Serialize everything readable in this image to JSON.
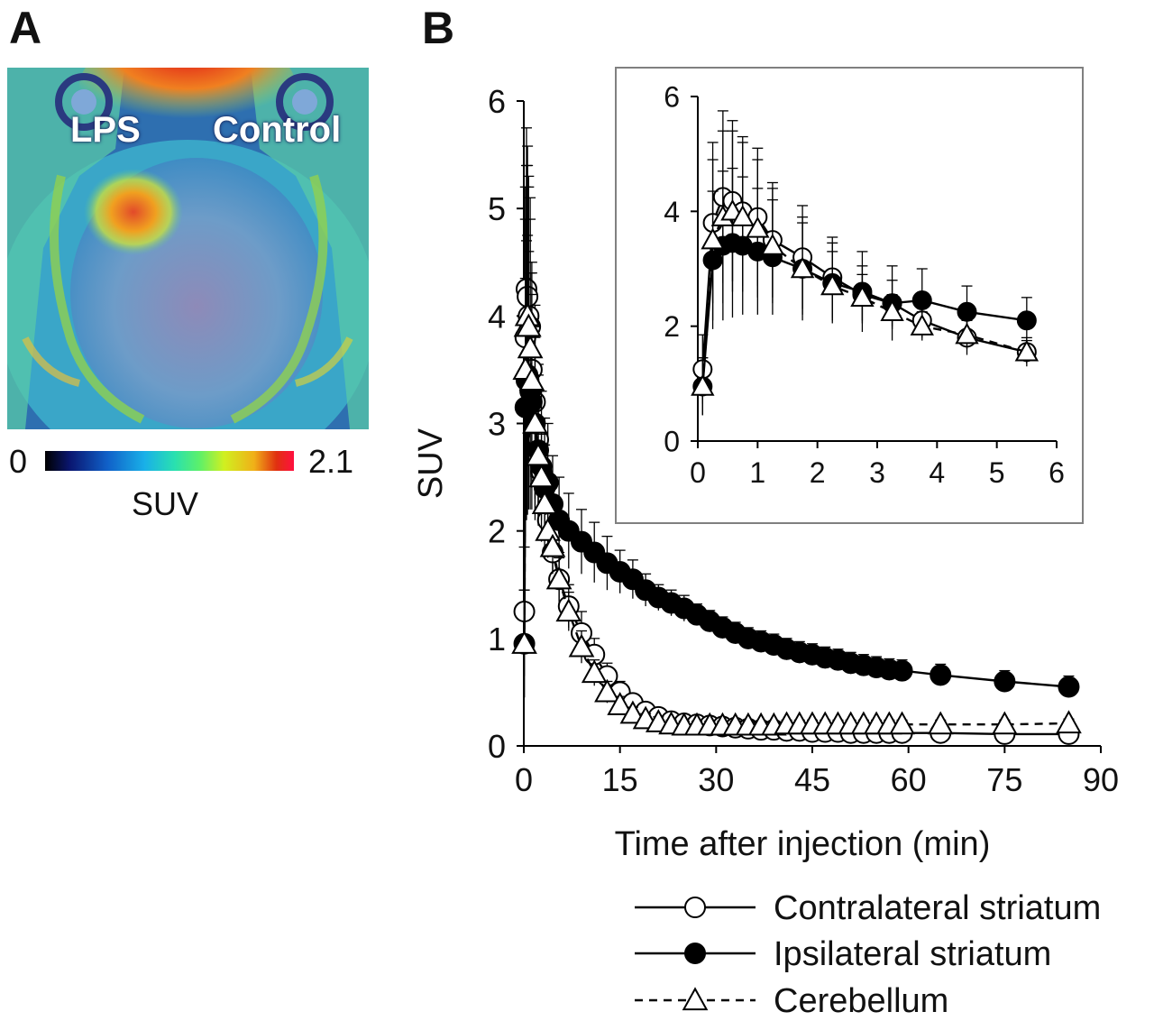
{
  "panel_a": {
    "letter": "A",
    "labels": {
      "lps": "LPS",
      "control": "Control"
    },
    "colorbar": {
      "min": "0",
      "max": "2.1",
      "unit": "SUV"
    }
  },
  "panel_b": {
    "letter": "B"
  },
  "chart_data": [
    {
      "type": "line",
      "xlabel": "Time after injection (min)",
      "ylabel": "SUV",
      "xlim": [
        0,
        90
      ],
      "ylim": [
        0,
        6
      ],
      "xticks": [
        "0",
        "15",
        "30",
        "45",
        "60",
        "75",
        "90"
      ],
      "yticks": [
        "0",
        "1",
        "2",
        "3",
        "4",
        "5",
        "6"
      ],
      "legend_position": "below plot, right",
      "series": [
        {
          "name": "Contralateral striatum",
          "marker": "open-circle",
          "line": "solid",
          "x": [
            0.08,
            0.25,
            0.42,
            0.58,
            0.75,
            1.0,
            1.25,
            1.75,
            2.25,
            2.75,
            3.25,
            3.75,
            4.5,
            5.5,
            7,
            9,
            11,
            13,
            15,
            17,
            19,
            21,
            23,
            25,
            27,
            29,
            31,
            33,
            35,
            37,
            39,
            41,
            43,
            45,
            47,
            49,
            51,
            53,
            55,
            57,
            59,
            65,
            75,
            85
          ],
          "y": [
            1.25,
            3.8,
            4.25,
            4.18,
            4.0,
            3.9,
            3.5,
            3.2,
            2.85,
            2.55,
            2.4,
            2.1,
            1.8,
            1.55,
            1.3,
            1.05,
            0.85,
            0.65,
            0.5,
            0.4,
            0.32,
            0.27,
            0.23,
            0.21,
            0.2,
            0.19,
            0.18,
            0.17,
            0.16,
            0.15,
            0.15,
            0.14,
            0.14,
            0.13,
            0.13,
            0.13,
            0.12,
            0.12,
            0.12,
            0.12,
            0.12,
            0.12,
            0.11,
            0.11
          ],
          "err": [
            0.6,
            1.4,
            1.5,
            1.4,
            1.3,
            1.2,
            1.0,
            0.9,
            0.7,
            0.5,
            0.4,
            0.3,
            0.3,
            0.25,
            0.2,
            0.2,
            0.15,
            0.12,
            0.1,
            0.08,
            0.07,
            0.06,
            0.05,
            0.05,
            0.05,
            0.04,
            0.04,
            0.04,
            0.04,
            0.04,
            0.04,
            0.04,
            0.04,
            0.03,
            0.03,
            0.03,
            0.03,
            0.03,
            0.03,
            0.03,
            0.03,
            0.03,
            0.03,
            0.03
          ]
        },
        {
          "name": "Ipsilateral striatum",
          "marker": "filled-circle",
          "line": "solid",
          "x": [
            0.08,
            0.25,
            0.42,
            0.58,
            0.75,
            1.0,
            1.25,
            1.75,
            2.25,
            2.75,
            3.25,
            3.75,
            4.5,
            5.5,
            7,
            9,
            11,
            13,
            15,
            17,
            19,
            21,
            23,
            25,
            27,
            29,
            31,
            33,
            35,
            37,
            39,
            41,
            43,
            45,
            47,
            49,
            51,
            53,
            55,
            57,
            59,
            65,
            75,
            85
          ],
          "y": [
            0.95,
            3.15,
            3.4,
            3.45,
            3.4,
            3.3,
            3.2,
            3.0,
            2.75,
            2.6,
            2.4,
            2.45,
            2.25,
            2.1,
            2.0,
            1.9,
            1.8,
            1.7,
            1.62,
            1.55,
            1.45,
            1.38,
            1.33,
            1.28,
            1.22,
            1.16,
            1.1,
            1.05,
            1.0,
            0.97,
            0.94,
            0.9,
            0.87,
            0.85,
            0.82,
            0.8,
            0.77,
            0.75,
            0.73,
            0.71,
            0.7,
            0.66,
            0.6,
            0.55
          ],
          "err": [
            0.5,
            1.2,
            1.3,
            1.3,
            1.2,
            1.1,
            1.0,
            0.9,
            0.7,
            0.7,
            0.65,
            0.55,
            0.45,
            0.4,
            0.35,
            0.3,
            0.28,
            0.25,
            0.2,
            0.18,
            0.15,
            0.12,
            0.12,
            0.12,
            0.1,
            0.1,
            0.1,
            0.1,
            0.1,
            0.1,
            0.1,
            0.1,
            0.1,
            0.1,
            0.1,
            0.1,
            0.1,
            0.1,
            0.1,
            0.1,
            0.1,
            0.1,
            0.1,
            0.1
          ]
        },
        {
          "name": "Cerebellum",
          "marker": "open-triangle",
          "line": "dashed",
          "x": [
            0.08,
            0.25,
            0.42,
            0.58,
            0.75,
            1.0,
            1.25,
            1.75,
            2.25,
            2.75,
            3.25,
            3.75,
            4.5,
            5.5,
            7,
            9,
            11,
            13,
            15,
            17,
            19,
            21,
            23,
            25,
            27,
            29,
            31,
            33,
            35,
            37,
            39,
            41,
            43,
            45,
            47,
            49,
            51,
            53,
            55,
            57,
            59,
            65,
            75,
            85
          ],
          "y": [
            0.95,
            3.5,
            3.9,
            4.0,
            3.9,
            3.7,
            3.4,
            3.0,
            2.7,
            2.5,
            2.25,
            2.0,
            1.85,
            1.55,
            1.25,
            0.92,
            0.68,
            0.5,
            0.38,
            0.3,
            0.25,
            0.22,
            0.2,
            0.19,
            0.19,
            0.19,
            0.19,
            0.19,
            0.19,
            0.19,
            0.19,
            0.2,
            0.2,
            0.2,
            0.2,
            0.2,
            0.2,
            0.2,
            0.2,
            0.2,
            0.2,
            0.2,
            0.2,
            0.21
          ],
          "err": [
            0.5,
            1.4,
            1.5,
            1.4,
            1.3,
            1.2,
            1.0,
            0.8,
            0.6,
            0.4,
            0.3,
            0.25,
            0.25,
            0.2,
            0.18,
            0.15,
            0.12,
            0.1,
            0.08,
            0.06,
            0.05,
            0.05,
            0.04,
            0.04,
            0.04,
            0.04,
            0.04,
            0.04,
            0.04,
            0.04,
            0.04,
            0.04,
            0.04,
            0.04,
            0.04,
            0.04,
            0.04,
            0.04,
            0.04,
            0.04,
            0.04,
            0.04,
            0.04,
            0.04
          ]
        }
      ]
    },
    {
      "type": "line",
      "role": "inset",
      "xlim": [
        0,
        6
      ],
      "ylim": [
        0,
        6
      ],
      "xticks": [
        "0",
        "1",
        "2",
        "3",
        "4",
        "5",
        "6"
      ],
      "yticks": [
        "0",
        "2",
        "4",
        "6"
      ],
      "note": "Inset zooms the first 6 minutes of the same three series (same data as above, x <= 6)."
    }
  ]
}
